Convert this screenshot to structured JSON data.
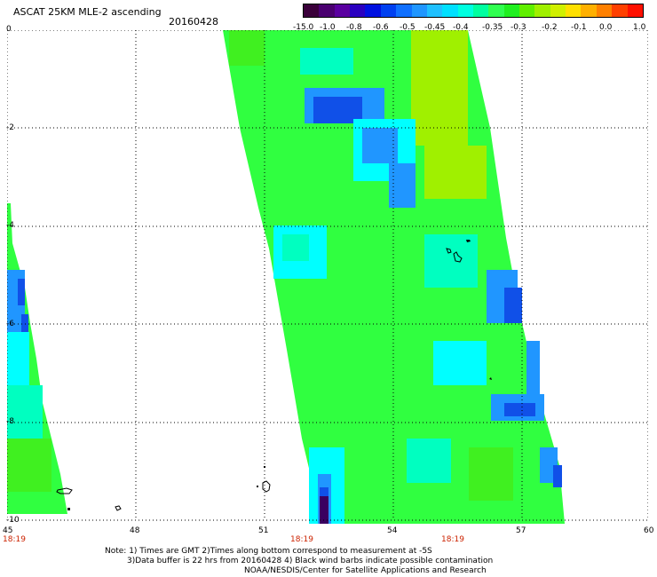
{
  "header": {
    "title": "ASCAT 25KM MLE-2 ascending",
    "date": "20160428"
  },
  "colorbar": {
    "colors": [
      "#3a003a",
      "#4a0070",
      "#5a00a0",
      "#2a00c0",
      "#0010e0",
      "#0040f0",
      "#1070ff",
      "#2096ff",
      "#20c0ff",
      "#00e0ff",
      "#00ffe0",
      "#00ffa0",
      "#30ff50",
      "#20f020",
      "#60f000",
      "#a0f000",
      "#d0f000",
      "#ffe000",
      "#ffb000",
      "#ff8000",
      "#ff4000",
      "#ff1000"
    ],
    "ticks": [
      "-15.0",
      "-1.0",
      "-0.8",
      "-0.6",
      "-0.5",
      "-0.45",
      "-0.4",
      "-0.35",
      "-0.3",
      "-0.2",
      "-0.1",
      "0.0",
      "1.0"
    ]
  },
  "axes": {
    "x_ticks": [
      "45",
      "48",
      "51",
      "54",
      "57",
      "60"
    ],
    "y_ticks": [
      "0",
      "-2",
      "-4",
      "-6",
      "-8",
      "-10"
    ],
    "time_labels": [
      "18:19",
      "18:19",
      "18:19"
    ]
  },
  "notes": [
    "Note: 1) Times are GMT 2)Times along bottom correspond to measurement at -5S",
    "3)Data buffer is 22 hrs from 20160428 4) Black wind barbs indicate possible contamination",
    "NOAA/NESDIS/Center for Satellite Applications and Research"
  ],
  "palette": {
    "purple": "#3a0060",
    "blue": "#1050e8",
    "light_blue": "#2096ff",
    "cyan": "#00ffff",
    "aqua": "#00ffc0",
    "green": "#30ff40",
    "bright_green": "#40f020",
    "yellow_green": "#a0f000"
  }
}
